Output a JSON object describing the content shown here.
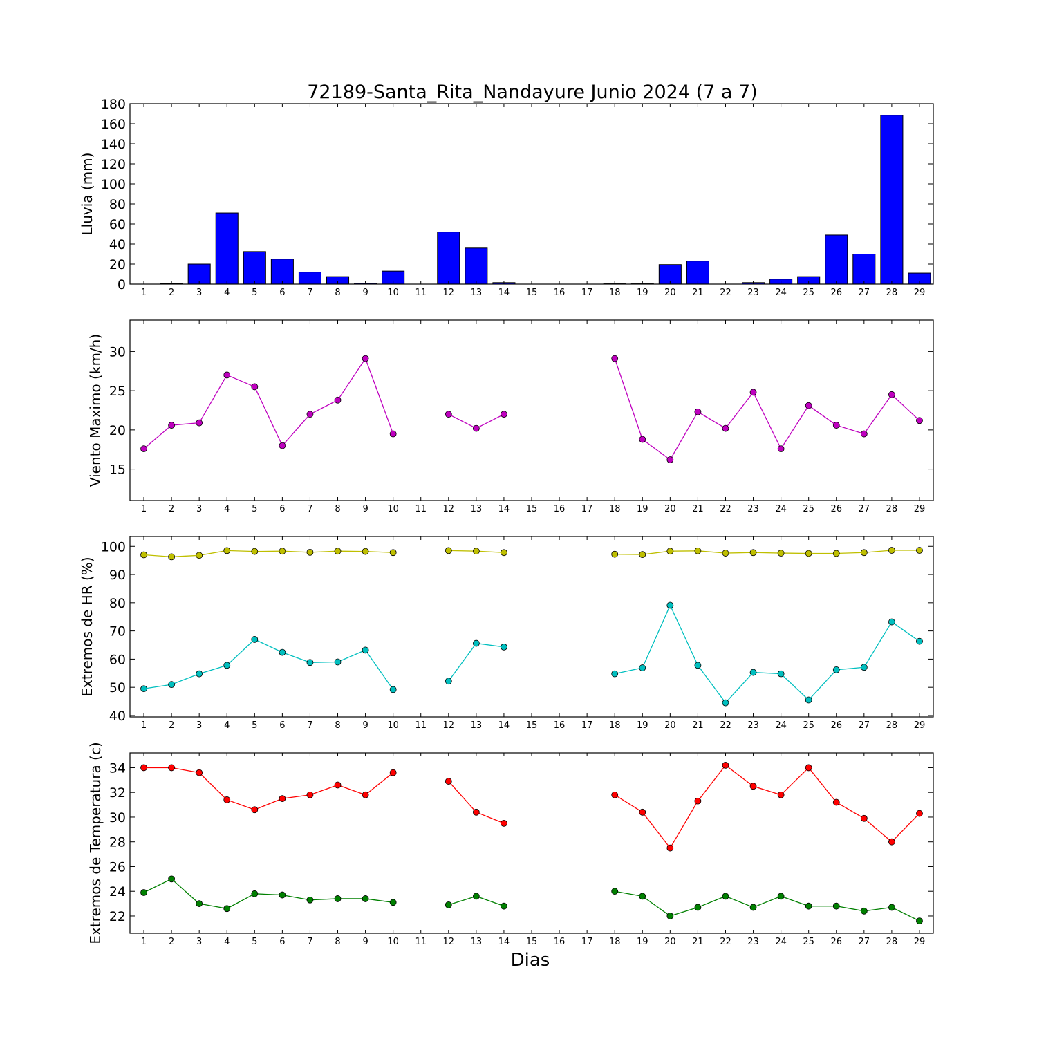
{
  "chart_data": [
    {
      "type": "bar",
      "title": "72189-Santa_Rita_Nandayure Junio 2024  (7 a 7)",
      "ylabel": "Lluvia (mm)",
      "xlabel": "",
      "ylim": [
        0,
        180
      ],
      "yticks": [
        0,
        20,
        40,
        60,
        80,
        100,
        120,
        140,
        160,
        180
      ],
      "x": [
        1,
        2,
        3,
        4,
        5,
        6,
        7,
        8,
        9,
        10,
        11,
        12,
        13,
        14,
        15,
        16,
        17,
        18,
        19,
        20,
        21,
        22,
        23,
        24,
        25,
        26,
        27,
        28,
        29
      ],
      "series": [
        {
          "values": [
            0,
            0.5,
            20,
            71,
            32.5,
            25,
            12,
            7.5,
            0.8,
            13,
            0,
            52,
            36,
            1.5,
            0,
            0,
            0,
            0.3,
            0.3,
            19.5,
            23,
            0,
            1.5,
            5,
            7.5,
            49,
            30,
            168.5,
            11
          ],
          "color": "#0000ff"
        }
      ]
    },
    {
      "type": "line",
      "ylabel": "Viento Maximo (km/h)",
      "xlabel": "",
      "ylim": [
        11,
        34
      ],
      "yticks": [
        15,
        20,
        25,
        30
      ],
      "x": [
        1,
        2,
        3,
        4,
        5,
        6,
        7,
        8,
        9,
        10,
        11,
        12,
        13,
        14,
        15,
        16,
        17,
        18,
        19,
        20,
        21,
        22,
        23,
        24,
        25,
        26,
        27,
        28,
        29
      ],
      "series": [
        {
          "values": [
            17.6,
            20.6,
            20.9,
            27.0,
            25.5,
            18.0,
            22.0,
            23.8,
            29.1,
            19.5,
            null,
            22.0,
            20.2,
            22.0,
            null,
            null,
            null,
            29.1,
            18.8,
            16.2,
            22.3,
            20.2,
            24.8,
            17.6,
            23.1,
            20.6,
            19.5,
            24.5,
            21.2
          ],
          "color": "#bf00bf"
        }
      ]
    },
    {
      "type": "line",
      "ylabel": "Extremos de HR (%)",
      "xlabel": "",
      "ylim": [
        39.5,
        103.5
      ],
      "yticks": [
        40,
        50,
        60,
        70,
        80,
        90,
        100
      ],
      "x": [
        1,
        2,
        3,
        4,
        5,
        6,
        7,
        8,
        9,
        10,
        11,
        12,
        13,
        14,
        15,
        16,
        17,
        18,
        19,
        20,
        21,
        22,
        23,
        24,
        25,
        26,
        27,
        28,
        29
      ],
      "series": [
        {
          "values": [
            97.0,
            96.3,
            96.8,
            98.5,
            98.2,
            98.3,
            97.9,
            98.3,
            98.2,
            97.8,
            null,
            98.5,
            98.3,
            97.8,
            null,
            null,
            null,
            97.2,
            97.1,
            98.3,
            98.4,
            97.6,
            97.8,
            97.6,
            97.5,
            97.5,
            97.8,
            98.6,
            98.6
          ],
          "color": "#bfbf00"
        },
        {
          "values": [
            49.5,
            51.0,
            54.8,
            57.8,
            67.0,
            62.4,
            58.8,
            59.0,
            63.2,
            49.2,
            null,
            52.2,
            65.6,
            64.3,
            null,
            null,
            null,
            54.8,
            56.9,
            79.1,
            57.8,
            44.5,
            55.3,
            54.8,
            45.5,
            56.2,
            57.1,
            73.2,
            66.3
          ],
          "color": "#00bfbf"
        }
      ]
    },
    {
      "type": "line",
      "ylabel": "Extremos de Temperatura (c)",
      "xlabel": "Dias",
      "ylim": [
        20.6,
        35.2
      ],
      "yticks": [
        22,
        24,
        26,
        28,
        30,
        32,
        34
      ],
      "x": [
        1,
        2,
        3,
        4,
        5,
        6,
        7,
        8,
        9,
        10,
        11,
        12,
        13,
        14,
        15,
        16,
        17,
        18,
        19,
        20,
        21,
        22,
        23,
        24,
        25,
        26,
        27,
        28,
        29
      ],
      "series": [
        {
          "values": [
            34.0,
            34.0,
            33.6,
            31.4,
            30.6,
            31.5,
            31.8,
            32.6,
            31.8,
            33.6,
            null,
            32.9,
            30.4,
            29.5,
            null,
            null,
            null,
            31.8,
            30.4,
            27.5,
            31.3,
            34.2,
            32.5,
            31.8,
            34.0,
            31.2,
            29.9,
            28.0,
            30.3
          ],
          "color": "#ff0000"
        },
        {
          "values": [
            23.9,
            25.0,
            23.0,
            22.6,
            23.8,
            23.7,
            23.3,
            23.4,
            23.4,
            23.1,
            null,
            22.9,
            23.6,
            22.8,
            null,
            null,
            null,
            24.0,
            23.6,
            22.0,
            22.7,
            23.6,
            22.7,
            23.6,
            22.8,
            22.8,
            22.4,
            22.7,
            21.6
          ],
          "color": "#008000"
        }
      ]
    }
  ]
}
